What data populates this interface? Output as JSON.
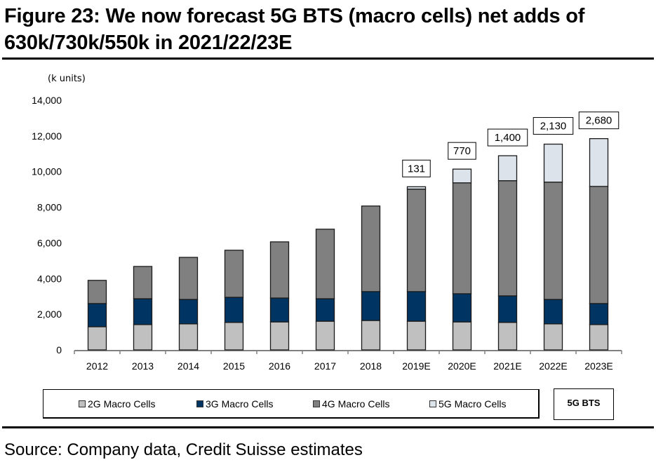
{
  "title": "Figure 23: We now forecast 5G BTS (macro cells) net adds of 630k/730k/550k in 2021/22/23E",
  "source": "Source: Company data, Credit Suisse estimates",
  "bts_box_label": "5G BTS",
  "chart_data": {
    "type": "bar",
    "stacked": true,
    "title": "Figure 23: We now forecast 5G BTS (macro cells) net adds of 630k/730k/550k in 2021/22/23E",
    "xlabel": "",
    "ylabel": "(k units)",
    "ylim": [
      0,
      14000
    ],
    "yticks": [
      0,
      2000,
      4000,
      6000,
      8000,
      10000,
      12000,
      14000
    ],
    "ytick_labels": [
      "0",
      "2,000",
      "4,000",
      "6,000",
      "8,000",
      "10,000",
      "12,000",
      "14,000"
    ],
    "grid": false,
    "legend_position": "bottom",
    "categories": [
      "2012",
      "2013",
      "2014",
      "2015",
      "2016",
      "2017",
      "2018",
      "2019E",
      "2020E",
      "2021E",
      "2022E",
      "2023E"
    ],
    "series": [
      {
        "name": "2G Macro Cells",
        "color": "#c0c0c0",
        "values": [
          1300,
          1420,
          1460,
          1540,
          1570,
          1610,
          1650,
          1610,
          1570,
          1540,
          1460,
          1420
        ]
      },
      {
        "name": "3G Macro Cells",
        "color": "#003463",
        "values": [
          1300,
          1450,
          1370,
          1410,
          1340,
          1260,
          1620,
          1660,
          1580,
          1490,
          1370,
          1180
        ]
      },
      {
        "name": "4G Macro Cells",
        "color": "#808080",
        "values": [
          1300,
          1810,
          2360,
          2640,
          3150,
          3900,
          4800,
          5750,
          6220,
          6460,
          6580,
          6570
        ]
      },
      {
        "name": "5G Macro Cells",
        "color": "#dce3ea",
        "values": [
          0,
          0,
          0,
          0,
          0,
          0,
          0,
          131,
          770,
          1400,
          2130,
          2680
        ]
      }
    ],
    "annotations": [
      {
        "category": "2019E",
        "label": "131"
      },
      {
        "category": "2020E",
        "label": "770"
      },
      {
        "category": "2021E",
        "label": "1,400"
      },
      {
        "category": "2022E",
        "label": "2,130"
      },
      {
        "category": "2023E",
        "label": "2,680"
      }
    ]
  }
}
